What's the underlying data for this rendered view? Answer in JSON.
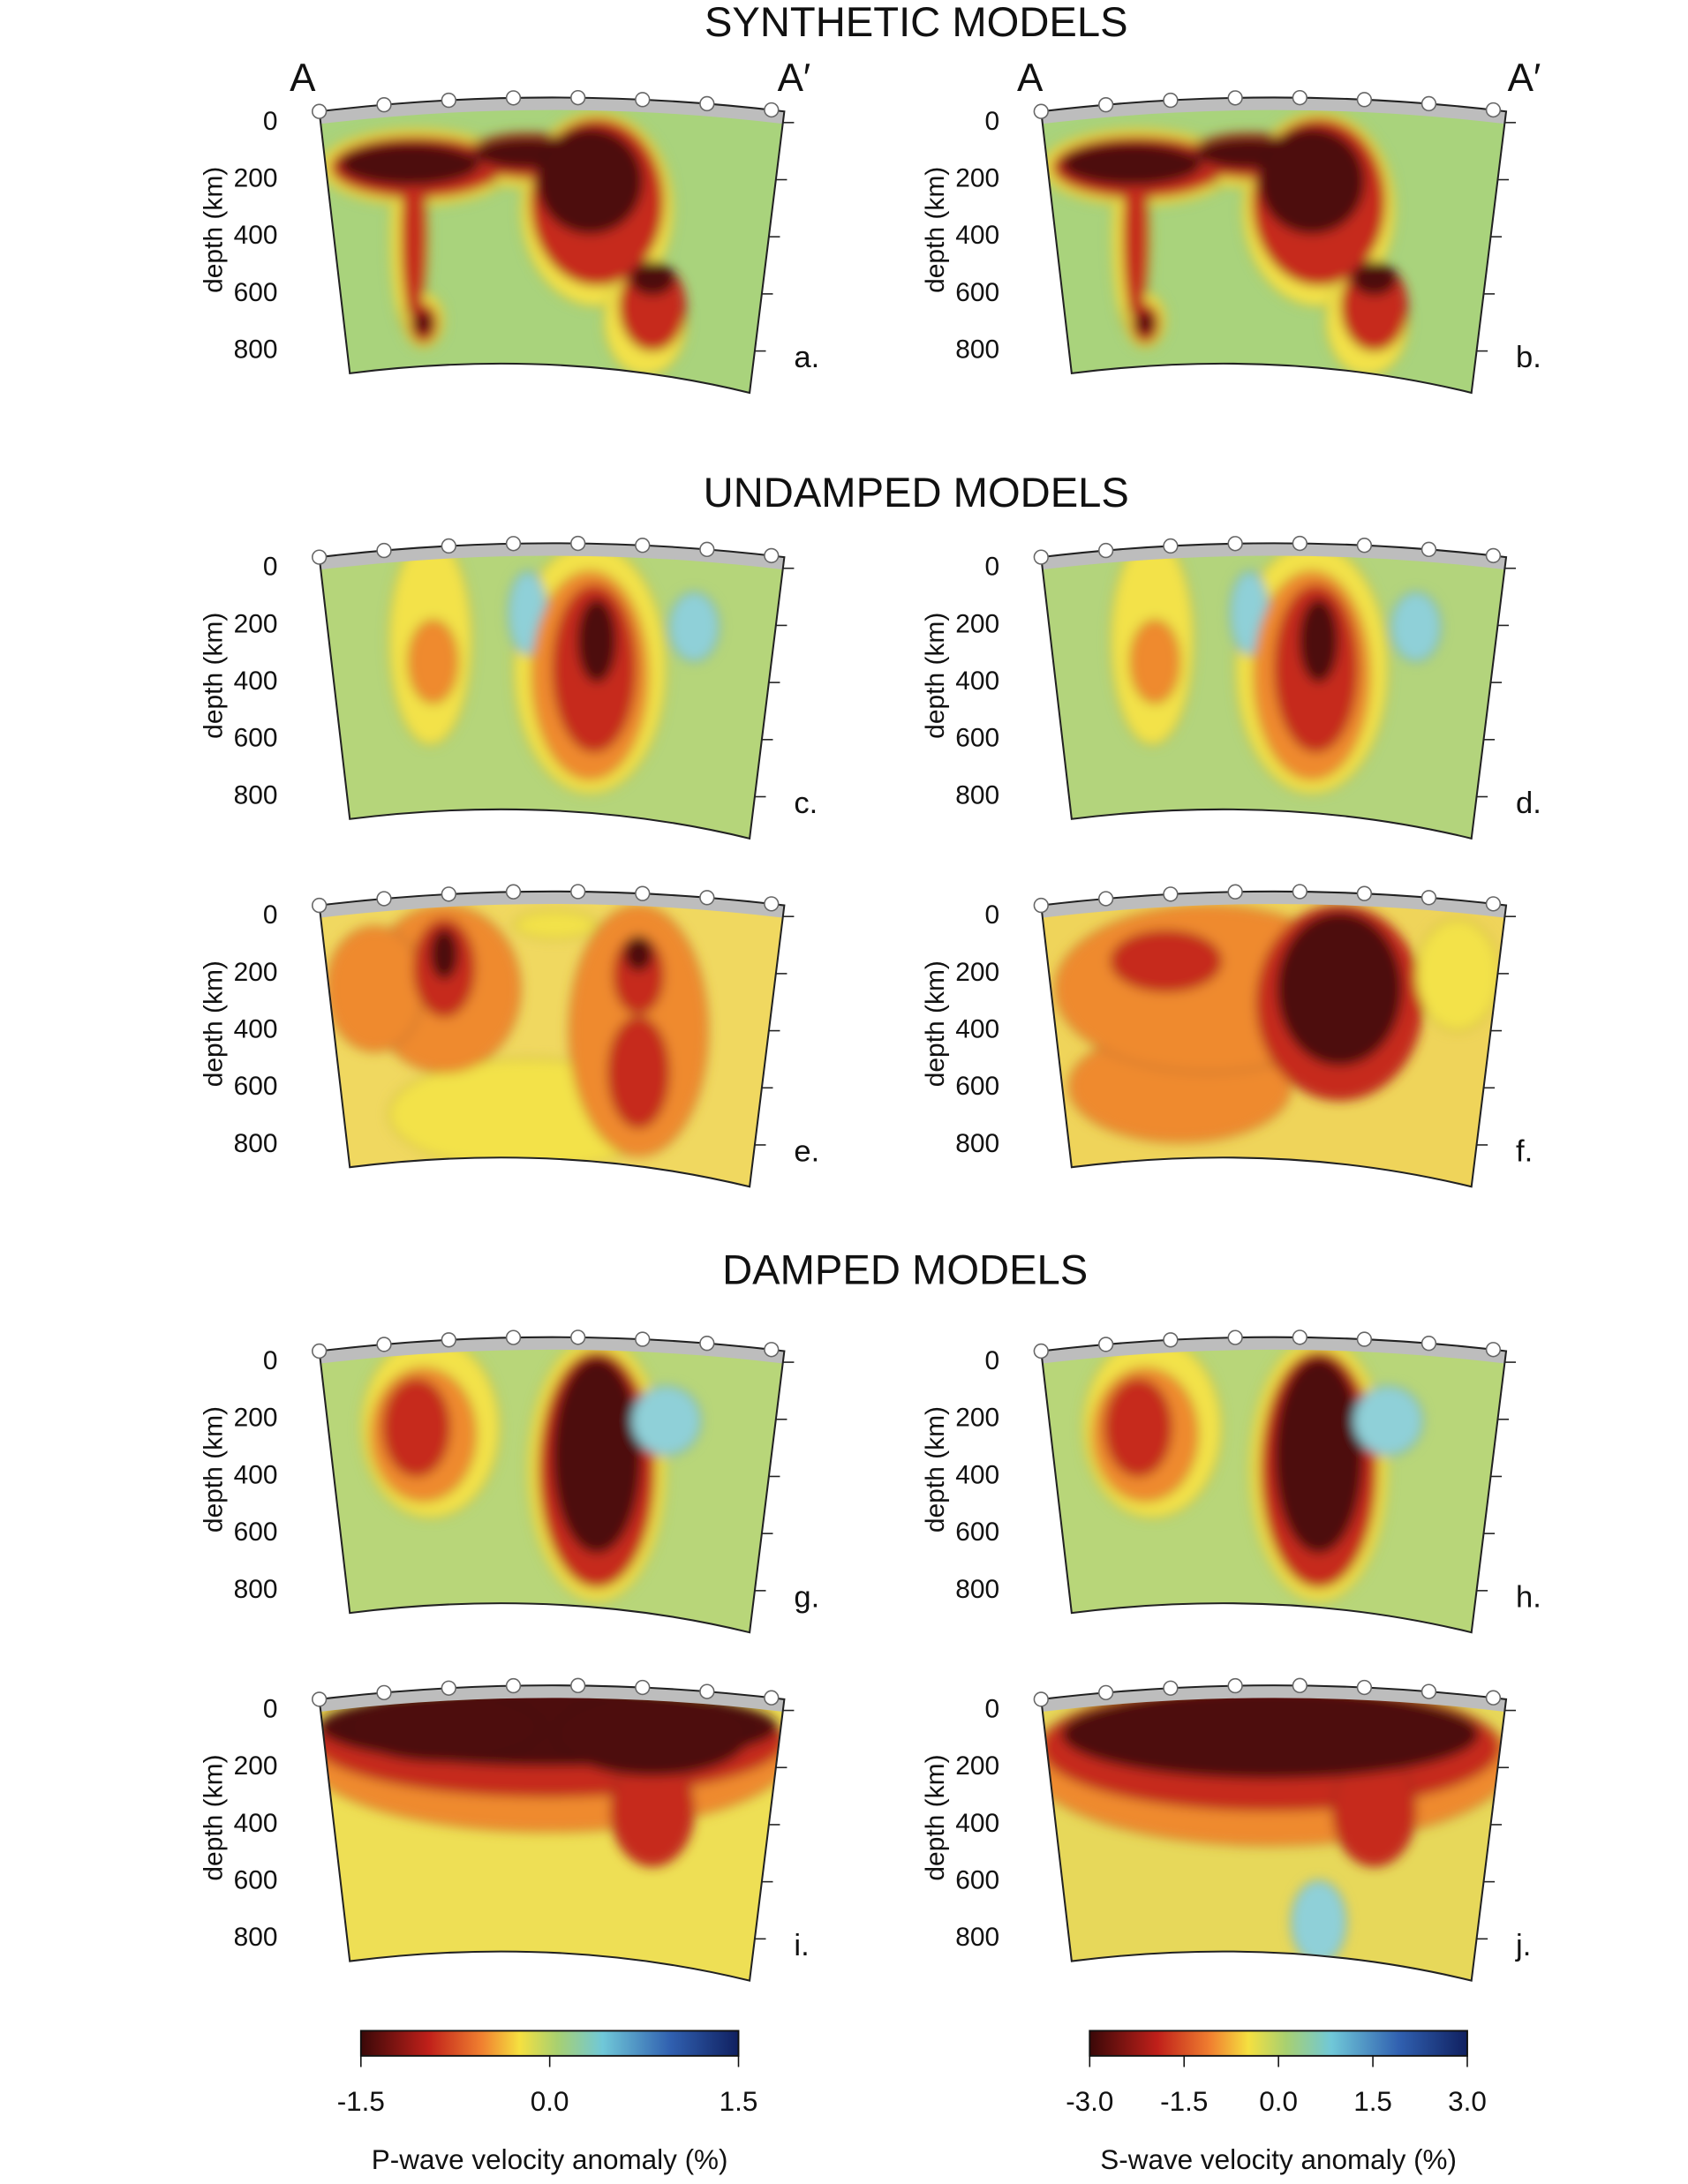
{
  "titles": [
    "SYNTHETIC MODELS",
    "UNDAMPED MODELS",
    "DAMPED MODELS"
  ],
  "profile_ends": [
    "A",
    "A′"
  ],
  "depth_axis": {
    "label": "depth (km)",
    "ticks": [
      0,
      200,
      400,
      600,
      800
    ]
  },
  "panels": [
    "a.",
    "b.",
    "c.",
    "d.",
    "e.",
    "f.",
    "g.",
    "h.",
    "i.",
    "j."
  ],
  "colorbars": [
    {
      "label": "P-wave velocity anomaly (%)",
      "range": [
        -1.5,
        1.5
      ],
      "ticks": [
        {
          "value": -1.5,
          "label": "-1.5"
        },
        {
          "value": 0,
          "label": "0.0"
        },
        {
          "value": 1.5,
          "label": "1.5"
        }
      ]
    },
    {
      "label": "S-wave velocity anomaly (%)",
      "range": [
        -3,
        3
      ],
      "ticks": [
        {
          "value": -3,
          "label": "-3.0"
        },
        {
          "value": -1.5,
          "label": "-1.5"
        },
        {
          "value": 0,
          "label": "0.0"
        },
        {
          "value": 1.5,
          "label": "1.5"
        },
        {
          "value": 3,
          "label": "3.0"
        }
      ]
    }
  ]
}
